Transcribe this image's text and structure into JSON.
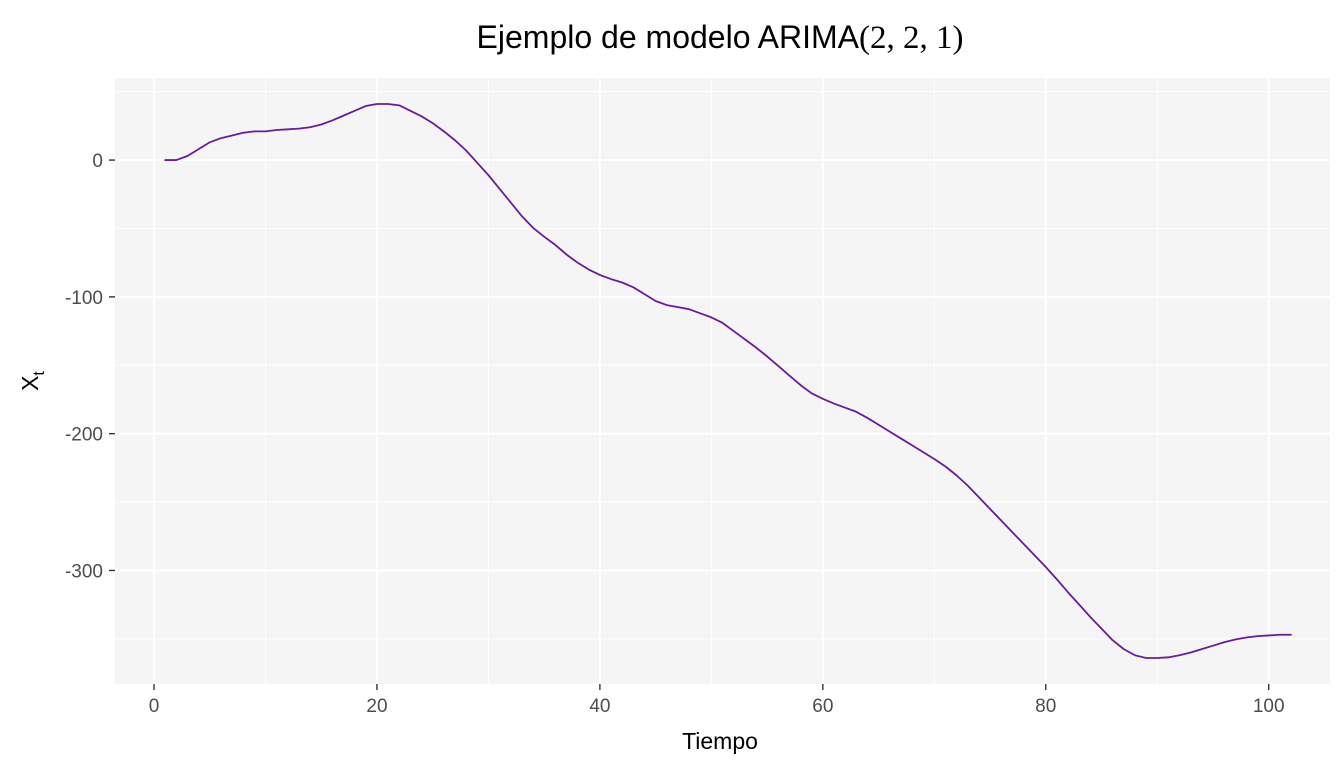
{
  "chart_data": {
    "type": "line",
    "title": "Ejemplo de modelo ARIMA",
    "title_math": "(2, 2, 1)",
    "xlabel": "Tiempo",
    "ylabel_main": "X",
    "ylabel_sub": "t",
    "xlim": [
      -3.5,
      105.5
    ],
    "ylim": [
      -383,
      60
    ],
    "x_ticks": [
      0,
      20,
      40,
      60,
      80,
      100
    ],
    "x_tick_labels": [
      "0",
      "20",
      "40",
      "60",
      "80",
      "100"
    ],
    "y_ticks": [
      0,
      -100,
      -200,
      -300
    ],
    "y_tick_labels": [
      "0",
      "-100",
      "-200",
      "-300"
    ],
    "grid": true,
    "legend": "none",
    "colors": {
      "panel_background": "#f5f5f5",
      "grid_major": "#ffffff",
      "grid_minor": "#ffffff",
      "line": "#6a1b9a"
    },
    "series": [
      {
        "x": [
          1,
          2,
          3,
          4,
          5,
          6,
          7,
          8,
          9,
          10,
          11,
          12,
          13,
          14,
          15,
          16,
          17,
          18,
          19,
          20,
          21,
          22,
          23,
          24,
          25,
          26,
          27,
          28,
          29,
          30,
          31,
          32,
          33,
          34,
          35,
          36,
          37,
          38,
          39,
          40,
          41,
          42,
          43,
          44,
          45,
          46,
          47,
          48,
          49,
          50,
          51,
          52,
          53,
          54,
          55,
          56,
          57,
          58,
          59,
          60,
          61,
          62,
          63,
          64,
          65,
          66,
          67,
          68,
          69,
          70,
          71,
          72,
          73,
          74,
          75,
          76,
          77,
          78,
          79,
          80,
          81,
          82,
          83,
          84,
          85,
          86,
          87,
          88,
          89,
          90,
          91,
          92,
          93,
          94,
          95,
          96,
          97,
          98,
          99,
          100,
          101,
          102
        ],
        "values": [
          0,
          0,
          3,
          8,
          13,
          16,
          18,
          20,
          21,
          21,
          22,
          22.5,
          23,
          24,
          26,
          29,
          32.5,
          36,
          39.5,
          41,
          41,
          40,
          36,
          32,
          27,
          21,
          14.5,
          7,
          -2,
          -11,
          -21,
          -31,
          -41,
          -49.5,
          -56,
          -62,
          -69,
          -75,
          -80,
          -84,
          -87,
          -89.5,
          -93,
          -98,
          -103,
          -106,
          -107.5,
          -109,
          -112,
          -115,
          -119,
          -125,
          -131,
          -137,
          -143.5,
          -150.5,
          -157.5,
          -164.5,
          -170.5,
          -174.5,
          -178,
          -181,
          -184,
          -188.5,
          -193.5,
          -198.5,
          -203.5,
          -208.5,
          -213.5,
          -218.5,
          -224,
          -230.5,
          -238,
          -246.5,
          -255,
          -263.5,
          -272,
          -280.5,
          -289,
          -297.5,
          -306.5,
          -316,
          -325,
          -334,
          -342.5,
          -351,
          -357.5,
          -362,
          -364,
          -364,
          -363.5,
          -362,
          -360,
          -357.5,
          -355,
          -352.5,
          -350.5,
          -349,
          -348,
          -347.5,
          -347,
          -347
        ]
      }
    ]
  }
}
